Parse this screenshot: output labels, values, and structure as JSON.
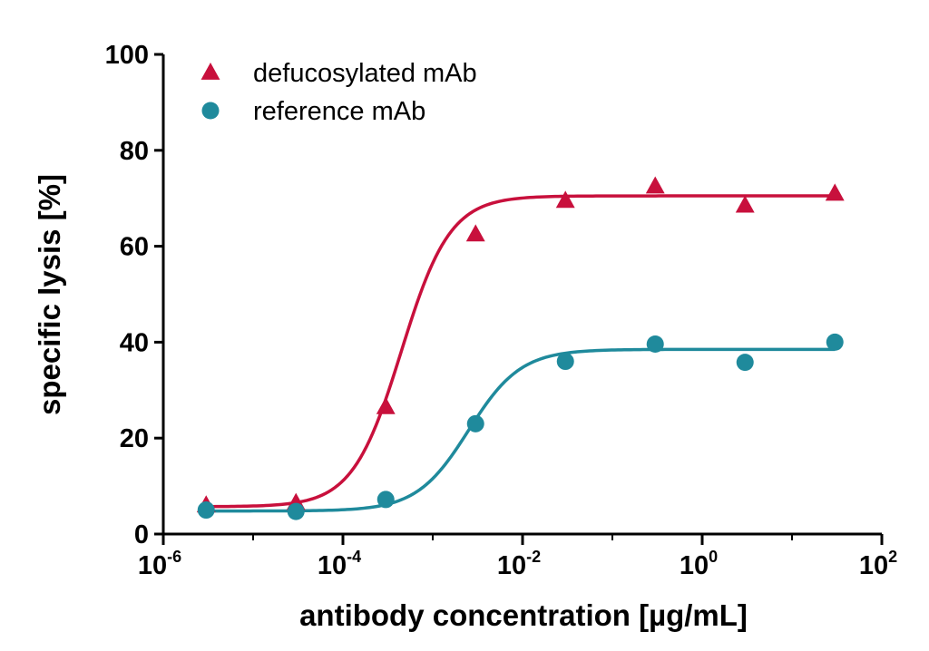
{
  "chart_data": {
    "type": "scatter",
    "xlabel": "antibody concentration [µg/mL]",
    "ylabel": "specific lysis [%]",
    "xscale": "log",
    "xlim": [
      1e-06,
      100
    ],
    "ylim": [
      0,
      100
    ],
    "x_ticks": [
      {
        "base": "10",
        "exp": "-6",
        "value": 1e-06
      },
      {
        "base": "10",
        "exp": "-4",
        "value": 0.0001
      },
      {
        "base": "10",
        "exp": "-2",
        "value": 0.01
      },
      {
        "base": "10",
        "exp": "0",
        "value": 1
      },
      {
        "base": "10",
        "exp": "2",
        "value": 100
      }
    ],
    "y_ticks": [
      "0",
      "20",
      "40",
      "60",
      "80",
      "100"
    ],
    "grid": false,
    "legend_position": "top-left",
    "series": [
      {
        "name": "defucosylated mAb",
        "marker": "triangle",
        "color": "#c8103c",
        "x": [
          3e-06,
          3e-05,
          0.0003,
          0.003,
          0.03,
          0.3,
          3,
          30
        ],
        "y": [
          6,
          6.5,
          26.5,
          62.5,
          69.5,
          72.5,
          68.5,
          71
        ],
        "fit": {
          "bottom": 5.7,
          "top": 70.5,
          "log_ec50": -3.35,
          "hill": 1.6
        }
      },
      {
        "name": "reference mAb",
        "marker": "circle",
        "color": "#1f8a9c",
        "x": [
          3e-06,
          3e-05,
          0.0003,
          0.003,
          0.03,
          0.3,
          3,
          30
        ],
        "y": [
          5,
          4.7,
          7.2,
          23,
          36,
          39.6,
          35.8,
          40
        ],
        "fit": {
          "bottom": 4.8,
          "top": 38.5,
          "log_ec50": -2.6,
          "hill": 1.5
        }
      }
    ]
  }
}
